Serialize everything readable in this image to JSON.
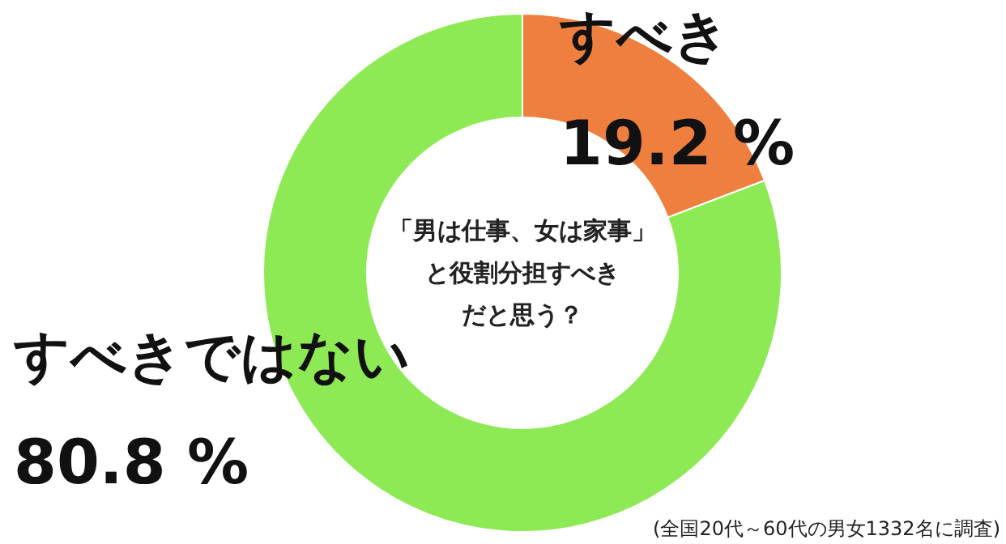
{
  "chart_data": {
    "type": "donut",
    "title": "「男は仕事、女は家事」と役割分担すべきだと思う？",
    "categories": [
      "すべき",
      "すべきではない"
    ],
    "values": [
      19.2,
      80.8
    ],
    "colors": [
      "#ef7f3f",
      "#8dea55"
    ],
    "value_labels": [
      "19.2 %",
      "80.8 %"
    ],
    "annotations": [
      "(全国20代～60代の男女1332名に調査)"
    ]
  }
}
